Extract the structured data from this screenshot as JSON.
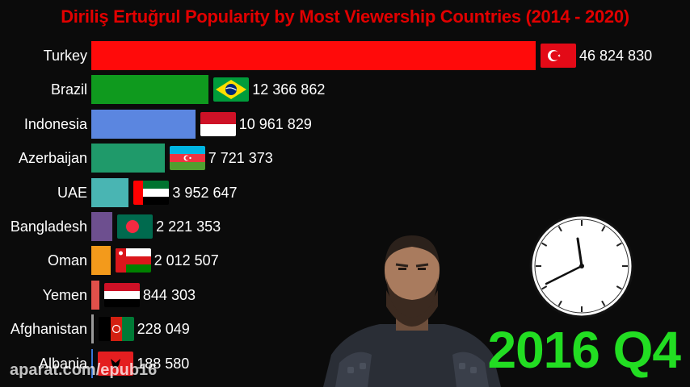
{
  "chart_data": {
    "type": "bar",
    "orientation": "horizontal",
    "title": "Diriliş Ertuğrul Popularity by Most Viewership Countries (2014 - 2020)",
    "period": "2016 Q4",
    "categories": [
      "Turkey",
      "Brazil",
      "Indonesia",
      "Azerbaijan",
      "UAE",
      "Bangladesh",
      "Oman",
      "Yemen",
      "Afghanistan",
      "Albania"
    ],
    "values": [
      46824830,
      12366862,
      10961829,
      7721373,
      3952647,
      2221353,
      2012507,
      844303,
      228049,
      188580
    ],
    "value_labels": [
      "46 824 830",
      "12 366 862",
      "10 961 829",
      "7 721 373",
      "3 952 647",
      "2 221 353",
      "2 012 507",
      "844 303",
      "228 049",
      "188 580"
    ],
    "colors": [
      "#ff0a0a",
      "#0f9a1e",
      "#5b86e0",
      "#1f9a6a",
      "#49b5b3",
      "#6d4f8f",
      "#f39a1b",
      "#e0504a",
      "#9a9a9a",
      "#3a76d8"
    ],
    "flags": [
      "turkey-flag",
      "brazil-flag",
      "indonesia-flag",
      "azerbaijan-flag",
      "uae-flag",
      "bangladesh-flag",
      "oman-flag",
      "yemen-flag",
      "afghanistan-flag",
      "albania-flag"
    ],
    "xlim": [
      0,
      46824830
    ],
    "xlabel": "",
    "ylabel": ""
  },
  "watermark": "aparat.com/epub16",
  "colors": {
    "title": "#e10000",
    "period": "#22dd22",
    "background": "#0b0b0b"
  }
}
